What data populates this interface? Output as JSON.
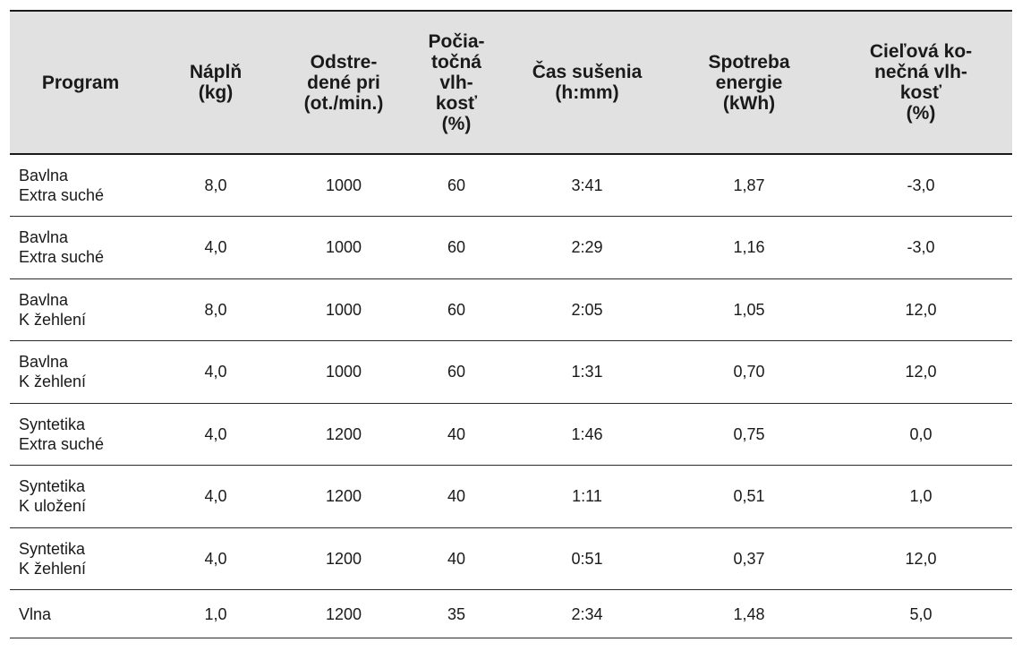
{
  "table": {
    "headers": [
      "Program",
      "Náplň\n(kg)",
      "Odstre-\ndené pri\n(ot./min.)",
      "Počia-\ntočná\nvlh-\nkosť\n(%)",
      "Čas sušenia\n(h:mm)",
      "Spotreba\nenergie\n(kWh)",
      "Cieľová ko-\nnečná vlh-\nkosť\n(%)"
    ],
    "rows": [
      {
        "program": [
          "Bavlna",
          "Extra suché"
        ],
        "cells": [
          "8,0",
          "1000",
          "60",
          "3:41",
          "1,87",
          "-3,0"
        ]
      },
      {
        "program": [
          "Bavlna",
          "Extra suché"
        ],
        "cells": [
          "4,0",
          "1000",
          "60",
          "2:29",
          "1,16",
          "-3,0"
        ]
      },
      {
        "program": [
          "Bavlna",
          "K žehlení"
        ],
        "cells": [
          "8,0",
          "1000",
          "60",
          "2:05",
          "1,05",
          "12,0"
        ]
      },
      {
        "program": [
          "Bavlna",
          "K žehlení"
        ],
        "cells": [
          "4,0",
          "1000",
          "60",
          "1:31",
          "0,70",
          "12,0"
        ]
      },
      {
        "program": [
          "Syntetika",
          "Extra suché"
        ],
        "cells": [
          "4,0",
          "1200",
          "40",
          "1:46",
          "0,75",
          "0,0"
        ]
      },
      {
        "program": [
          "Syntetika",
          "K uložení"
        ],
        "cells": [
          "4,0",
          "1200",
          "40",
          "1:11",
          "0,51",
          "1,0"
        ]
      },
      {
        "program": [
          "Syntetika",
          "K žehlení"
        ],
        "cells": [
          "4,0",
          "1200",
          "40",
          "0:51",
          "0,37",
          "12,0"
        ]
      },
      {
        "program": [
          "Vlna"
        ],
        "cells": [
          "1,0",
          "1200",
          "35",
          "2:34",
          "1,48",
          "5,0"
        ]
      }
    ]
  },
  "colors": {
    "header_bg": "#e1e1e1",
    "text": "#1a1a1a",
    "rule": "#1a1a1a"
  }
}
